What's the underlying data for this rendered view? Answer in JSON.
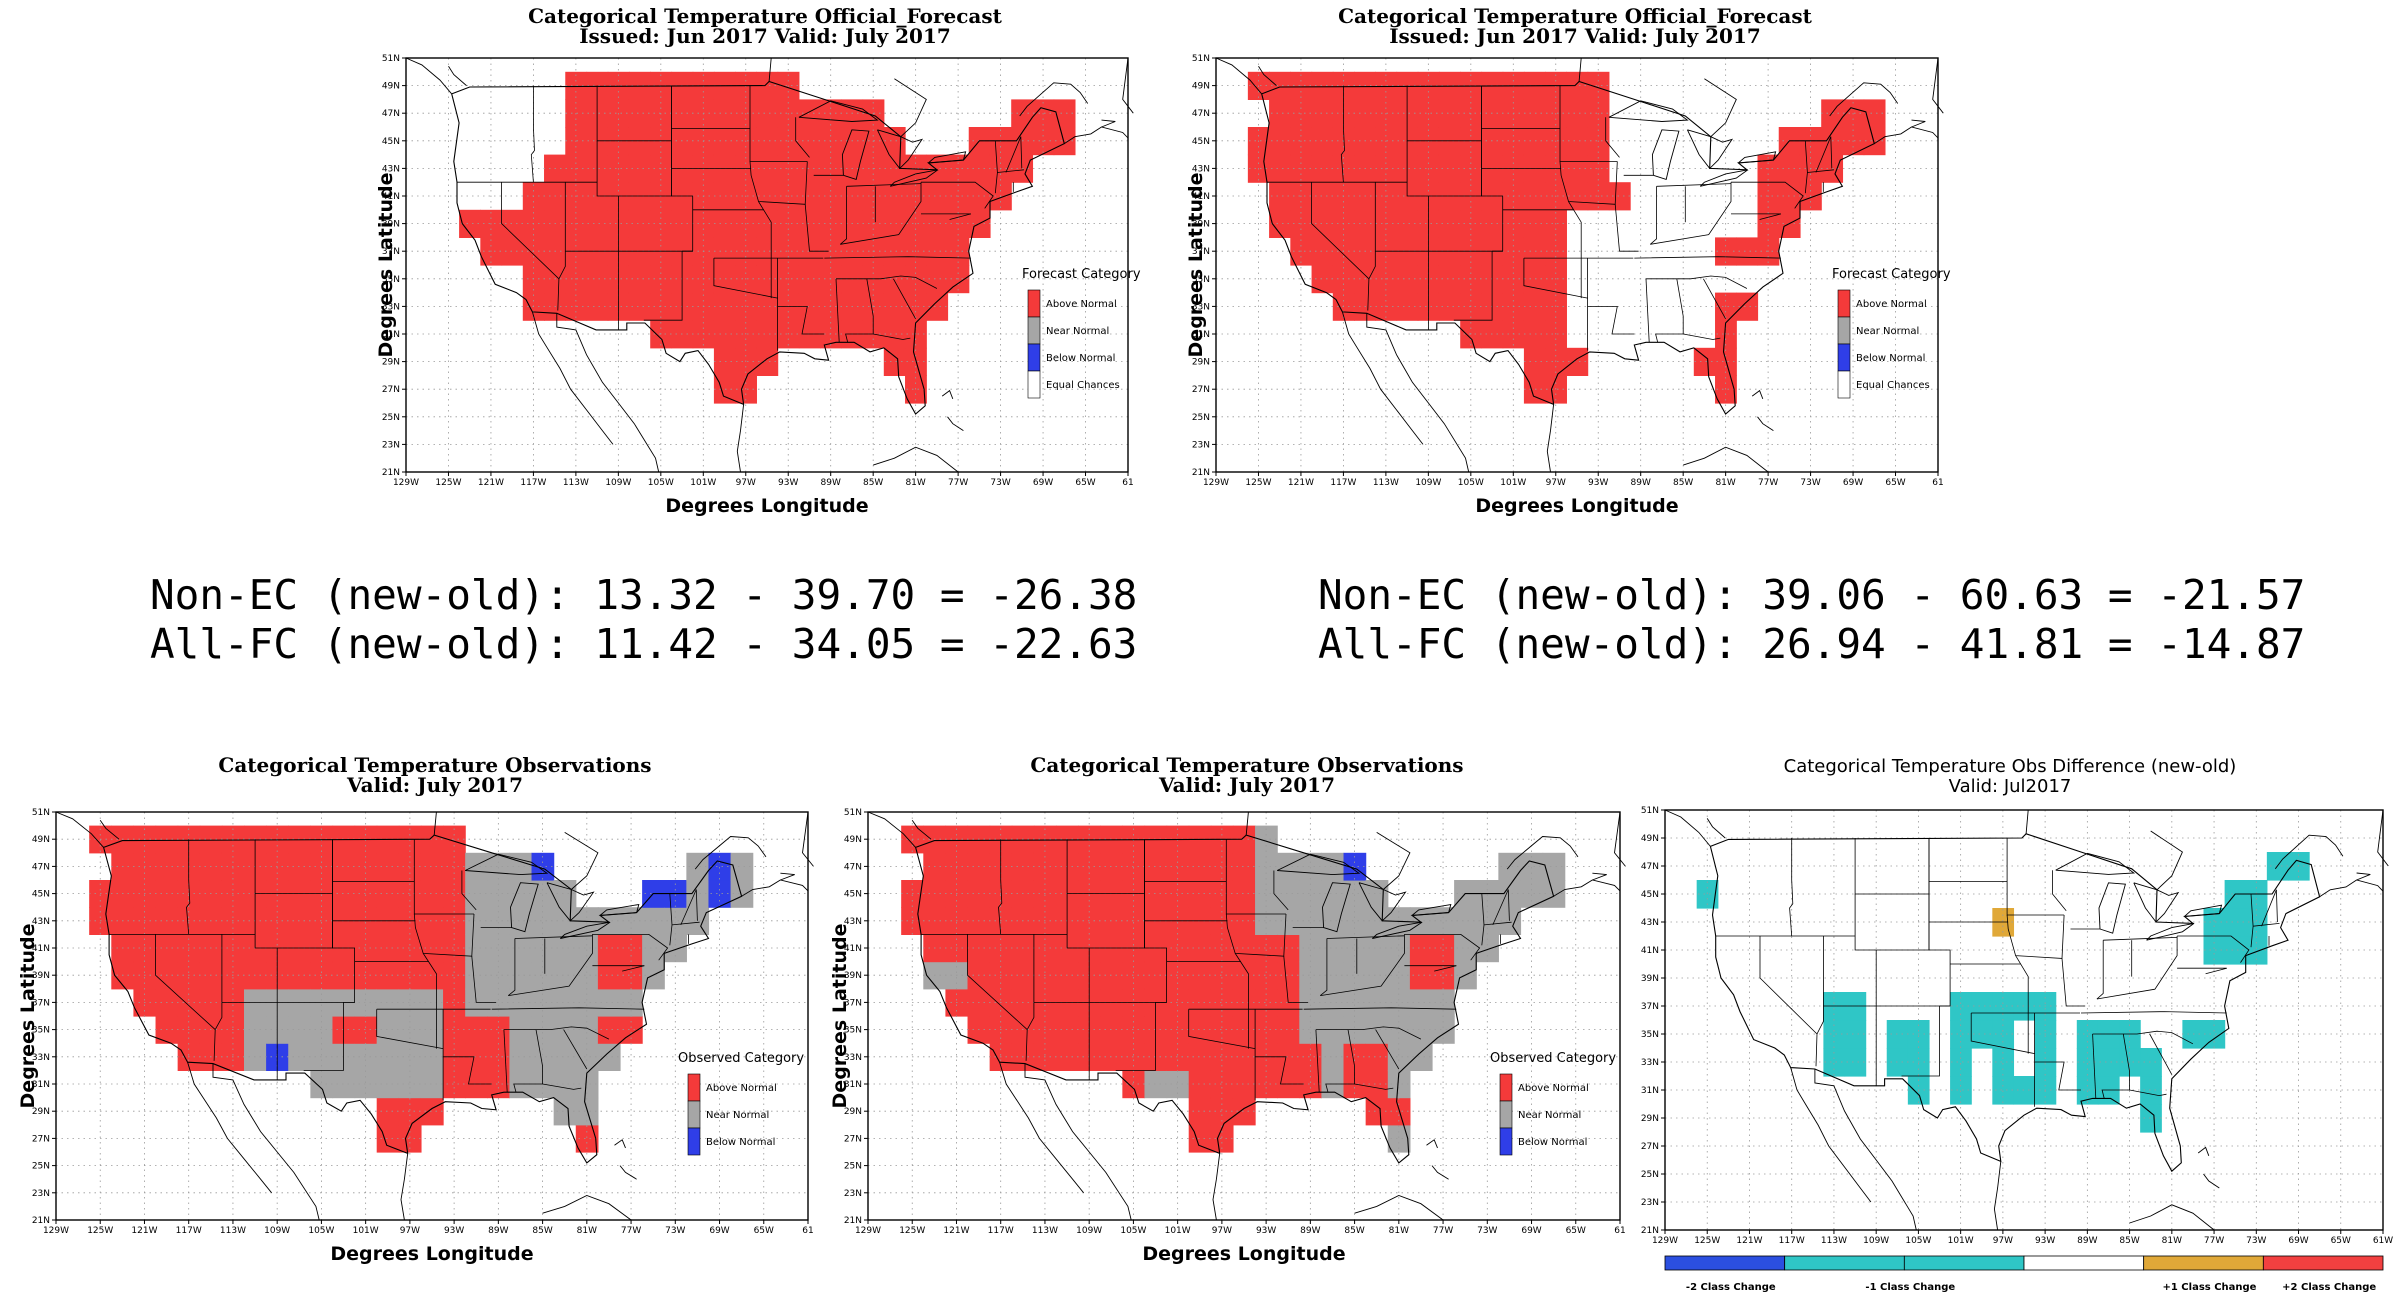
{
  "colors": {
    "above": "#f43a3a",
    "near": "#a6a6a6",
    "below": "#2f3ee8",
    "equal": "#ffffff",
    "minus2": "#2b4fe0",
    "minus1": "#2fc6c6",
    "plus1": "#e0a838",
    "plus2": "#f24040"
  },
  "axes": {
    "lat_ticks": [
      "51N",
      "49N",
      "47N",
      "45N",
      "43N",
      "41N",
      "39N",
      "37N",
      "35N",
      "33N",
      "31N",
      "29N",
      "27N",
      "25N",
      "23N",
      "21N"
    ],
    "lon_ticks": [
      "129W",
      "125W",
      "121W",
      "117W",
      "113W",
      "109W",
      "105W",
      "101W",
      "97W",
      "93W",
      "89W",
      "85W",
      "81W",
      "77W",
      "73W",
      "69W",
      "65W",
      "61"
    ],
    "lon_ticks_diff": [
      "129W",
      "125W",
      "121W",
      "117W",
      "113W",
      "109W",
      "105W",
      "101W",
      "97W",
      "93W",
      "89W",
      "85W",
      "81W",
      "77W",
      "73W",
      "69W",
      "65W",
      "61W"
    ],
    "xlabel": "Degrees Longitude",
    "ylabel": "Degrees Latitude"
  },
  "panels": {
    "fc_new": {
      "title1": "Categorical Temperature Official_Forecast",
      "title2": "Issued: Jun 2017 Valid: July 2017",
      "legend_title": "Forecast Category",
      "legend": [
        "Above Normal",
        "Near Normal",
        "Below Normal",
        "Equal Chances"
      ]
    },
    "fc_old": {
      "title1": "Categorical Temperature Official_Forecast",
      "title2": "Issued: Jun 2017 Valid: July 2017",
      "legend_title": "Forecast Category",
      "legend": [
        "Above Normal",
        "Near Normal",
        "Below Normal",
        "Equal Chances"
      ]
    },
    "obs_new": {
      "title1": "Categorical Temperature Observations",
      "title2": "Valid: July 2017",
      "legend_title": "Observed Category",
      "legend": [
        "Above Normal",
        "Near Normal",
        "Below Normal"
      ]
    },
    "obs_old": {
      "title1": "Categorical Temperature Observations",
      "title2": "Valid: July 2017",
      "legend_title": "Observed Category",
      "legend": [
        "Above Normal",
        "Near Normal",
        "Below Normal"
      ]
    },
    "diff": {
      "title1": "Categorical Temperature Obs Difference (new-old)",
      "title2": "Valid: Jul2017",
      "legend": [
        "-2 Class Change",
        "-1 Class Change",
        "+1 Class Change",
        "+2 Class Change"
      ]
    }
  },
  "scores": {
    "left": {
      "non_ec": "Non-EC (new-old): 13.32 - 39.70 = -26.38",
      "all_fc": "All-FC (new-old): 11.42 - 34.05 = -22.63"
    },
    "right": {
      "non_ec": "Non-EC (new-old): 39.06 - 60.63 = -21.57",
      "all_fc": "All-FC (new-old): 26.94 - 41.81 = -14.87"
    }
  }
}
